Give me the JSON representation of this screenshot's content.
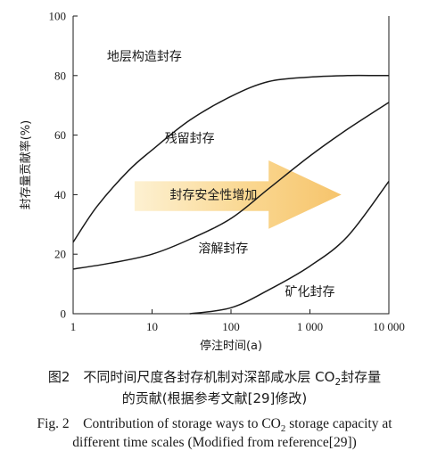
{
  "chart_data": {
    "type": "area",
    "ylabel": "封存量贡献率(%)",
    "xlabel": "停注时间(a)",
    "x_scale": "log",
    "xlim": [
      1,
      10000
    ],
    "ylim": [
      0,
      100
    ],
    "x_ticks": [
      "1",
      "10",
      "100",
      "1 000",
      "10 000"
    ],
    "y_ticks": [
      "0",
      "20",
      "40",
      "60",
      "80",
      "100"
    ],
    "boundaries": [
      {
        "x": [
          1,
          2,
          5,
          10,
          30,
          100,
          300,
          1000,
          3000,
          7000,
          10000
        ],
        "y": [
          24,
          36,
          48,
          55,
          65,
          73,
          78,
          79.5,
          80,
          80,
          80
        ]
      },
      {
        "x": [
          1,
          3,
          10,
          30,
          100,
          300,
          1000,
          3000,
          10000
        ],
        "y": [
          15,
          17,
          20,
          25,
          32,
          42,
          53,
          62,
          71
        ]
      },
      {
        "x": [
          30,
          100,
          300,
          1000,
          3000,
          10000
        ],
        "y": [
          0,
          2,
          8,
          16,
          26,
          44.5
        ]
      }
    ],
    "regions": [
      "地层构造封存",
      "残留封存",
      "溶解封存",
      "矿化封存"
    ],
    "arrow_label": "封存安全性增加"
  },
  "caption": {
    "cn_line1_a": "图2　不同时间尺度各封存机制对深部咸水层 CO",
    "cn_line1_sub": "2",
    "cn_line1_b": "封存量",
    "cn_line2": "的贡献(根据参考文献[29]修改)",
    "en_line1_a": "Fig. 2　Contribution of storage ways to CO",
    "en_line1_sub": "2",
    "en_line1_b": " storage capacity at",
    "en_line2": "different time scales (Modified from reference[29])"
  },
  "colors": {
    "arrow_fill": "#f7c977",
    "line": "#1a1a1a"
  }
}
